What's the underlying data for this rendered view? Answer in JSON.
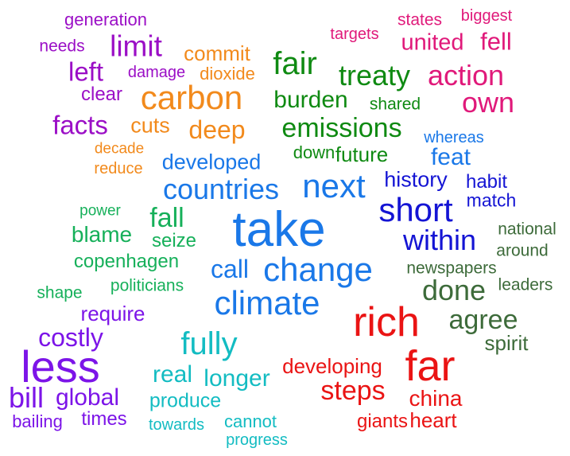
{
  "colors": {
    "magenta": "#e0197a",
    "purple": "#9b0fc6",
    "orange": "#f28a1c",
    "dark_green": "#0f8a12",
    "green": "#16b05a",
    "blue": "#1a78e8",
    "dark_blue": "#1414d4",
    "gray_green": "#3d6b3a",
    "red": "#ea1414",
    "violet": "#7c14e8",
    "cyan": "#13bcc2"
  },
  "words": [
    {
      "text": "generation",
      "color": "#9b0fc6"
    },
    {
      "text": "states",
      "color": "#e0197a"
    },
    {
      "text": "biggest",
      "color": "#e0197a"
    },
    {
      "text": "targets",
      "color": "#e0197a"
    },
    {
      "text": "united",
      "color": "#e0197a"
    },
    {
      "text": "fell",
      "color": "#e0197a"
    },
    {
      "text": "needs",
      "color": "#9b0fc6"
    },
    {
      "text": "limit",
      "color": "#9b0fc6"
    },
    {
      "text": "commit",
      "color": "#f28a1c"
    },
    {
      "text": "fair",
      "color": "#0f8a12"
    },
    {
      "text": "left",
      "color": "#9b0fc6"
    },
    {
      "text": "damage",
      "color": "#9b0fc6"
    },
    {
      "text": "dioxide",
      "color": "#f28a1c"
    },
    {
      "text": "treaty",
      "color": "#0f8a12"
    },
    {
      "text": "action",
      "color": "#e0197a"
    },
    {
      "text": "clear",
      "color": "#9b0fc6"
    },
    {
      "text": "carbon",
      "color": "#f28a1c"
    },
    {
      "text": "burden",
      "color": "#0f8a12"
    },
    {
      "text": "shared",
      "color": "#0f8a12"
    },
    {
      "text": "own",
      "color": "#e0197a"
    },
    {
      "text": "facts",
      "color": "#9b0fc6"
    },
    {
      "text": "cuts",
      "color": "#f28a1c"
    },
    {
      "text": "deep",
      "color": "#f28a1c"
    },
    {
      "text": "emissions",
      "color": "#0f8a12"
    },
    {
      "text": "whereas",
      "color": "#1a78e8"
    },
    {
      "text": "decade",
      "color": "#f28a1c"
    },
    {
      "text": "down",
      "color": "#0f8a12"
    },
    {
      "text": "future",
      "color": "#0f8a12"
    },
    {
      "text": "feat",
      "color": "#1a78e8"
    },
    {
      "text": "developed",
      "color": "#1a78e8"
    },
    {
      "text": "reduce",
      "color": "#f28a1c"
    },
    {
      "text": "history",
      "color": "#1414d4"
    },
    {
      "text": "habit",
      "color": "#1414d4"
    },
    {
      "text": "countries",
      "color": "#1a78e8"
    },
    {
      "text": "next",
      "color": "#1a78e8"
    },
    {
      "text": "match",
      "color": "#1414d4"
    },
    {
      "text": "power",
      "color": "#16b05a"
    },
    {
      "text": "fall",
      "color": "#16b05a"
    },
    {
      "text": "short",
      "color": "#1414d4"
    },
    {
      "text": "take",
      "color": "#1a78e8"
    },
    {
      "text": "national",
      "color": "#3d6b3a"
    },
    {
      "text": "blame",
      "color": "#16b05a"
    },
    {
      "text": "seize",
      "color": "#16b05a"
    },
    {
      "text": "within",
      "color": "#1414d4"
    },
    {
      "text": "around",
      "color": "#3d6b3a"
    },
    {
      "text": "copenhagen",
      "color": "#16b05a"
    },
    {
      "text": "call",
      "color": "#1a78e8"
    },
    {
      "text": "change",
      "color": "#1a78e8"
    },
    {
      "text": "newspapers",
      "color": "#3d6b3a"
    },
    {
      "text": "shape",
      "color": "#16b05a"
    },
    {
      "text": "politicians",
      "color": "#16b05a"
    },
    {
      "text": "done",
      "color": "#3d6b3a"
    },
    {
      "text": "leaders",
      "color": "#3d6b3a"
    },
    {
      "text": "climate",
      "color": "#1a78e8"
    },
    {
      "text": "require",
      "color": "#7c14e8"
    },
    {
      "text": "rich",
      "color": "#ea1414"
    },
    {
      "text": "agree",
      "color": "#3d6b3a"
    },
    {
      "text": "costly",
      "color": "#7c14e8"
    },
    {
      "text": "spirit",
      "color": "#3d6b3a"
    },
    {
      "text": "fully",
      "color": "#13bcc2"
    },
    {
      "text": "less",
      "color": "#7c14e8"
    },
    {
      "text": "developing",
      "color": "#ea1414"
    },
    {
      "text": "far",
      "color": "#ea1414"
    },
    {
      "text": "real",
      "color": "#13bcc2"
    },
    {
      "text": "longer",
      "color": "#13bcc2"
    },
    {
      "text": "steps",
      "color": "#ea1414"
    },
    {
      "text": "bill",
      "color": "#7c14e8"
    },
    {
      "text": "global",
      "color": "#7c14e8"
    },
    {
      "text": "produce",
      "color": "#13bcc2"
    },
    {
      "text": "china",
      "color": "#ea1414"
    },
    {
      "text": "bailing",
      "color": "#7c14e8"
    },
    {
      "text": "times",
      "color": "#7c14e8"
    },
    {
      "text": "towards",
      "color": "#13bcc2"
    },
    {
      "text": "cannot",
      "color": "#13bcc2"
    },
    {
      "text": "giants",
      "color": "#ea1414"
    },
    {
      "text": "heart",
      "color": "#ea1414"
    },
    {
      "text": "progress",
      "color": "#13bcc2"
    }
  ]
}
